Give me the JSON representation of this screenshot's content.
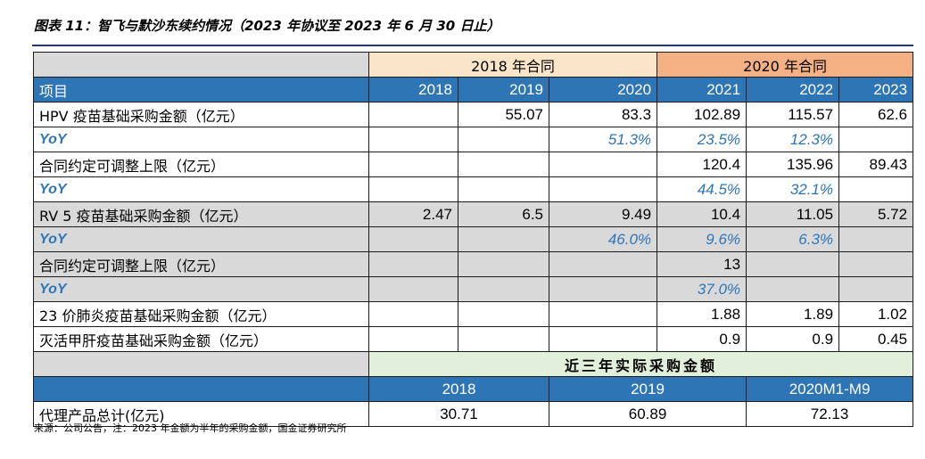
{
  "title": "图表 11：智飞与默沙东续约情况（2023 年协议至 2023 年 6 月 30 日止）",
  "groups": {
    "g2018": "2018 年合同",
    "g2020": "2020 年合同"
  },
  "header": {
    "item": "项目",
    "years": [
      "2018",
      "2019",
      "2020",
      "2021",
      "2022",
      "2023"
    ]
  },
  "rows": [
    {
      "label": "HPV 疫苗基础采购金额（亿元）",
      "values": [
        "",
        "55.07",
        "83.3",
        "102.89",
        "115.57",
        "62.6"
      ]
    },
    {
      "label": "YoY",
      "values": [
        "",
        "",
        "51.3%",
        "23.5%",
        "12.3%",
        ""
      ]
    },
    {
      "label": "合同约定可调整上限（亿元）",
      "values": [
        "",
        "",
        "",
        "120.4",
        "135.96",
        "89.43"
      ]
    },
    {
      "label": "YoY",
      "values": [
        "",
        "",
        "",
        "44.5%",
        "32.1%",
        ""
      ]
    },
    {
      "label": "RV 5 疫苗基础采购金额（亿元）",
      "values": [
        "2.47",
        "6.5",
        "9.49",
        "10.4",
        "11.05",
        "5.72"
      ]
    },
    {
      "label": "YoY",
      "values": [
        "",
        "",
        "46.0%",
        "9.6%",
        "6.3%",
        ""
      ]
    },
    {
      "label": "合同约定可调整上限（亿元）",
      "values": [
        "",
        "",
        "",
        "13",
        "",
        ""
      ]
    },
    {
      "label": "YoY",
      "values": [
        "",
        "",
        "",
        "37.0%",
        "",
        ""
      ]
    },
    {
      "label": "23 价肺炎疫苗基础采购金额（亿元）",
      "values": [
        "",
        "",
        "",
        "1.88",
        "1.89",
        "1.02"
      ]
    },
    {
      "label": "灭活甲肝疫苗基础采购金额（亿元）",
      "values": [
        "",
        "",
        "",
        "0.9",
        "0.9",
        "0.45"
      ]
    }
  ],
  "actual": {
    "heading": "近三年实际采购金额",
    "periods": [
      "2018",
      "2019",
      "2020M1-M9"
    ],
    "label": "代理产品总计(亿元)",
    "values": [
      "30.71",
      "60.89",
      "72.13"
    ]
  },
  "source": "来源：公司公告，注：2023 年金额为半年的采购金额，国金证券研究所"
}
